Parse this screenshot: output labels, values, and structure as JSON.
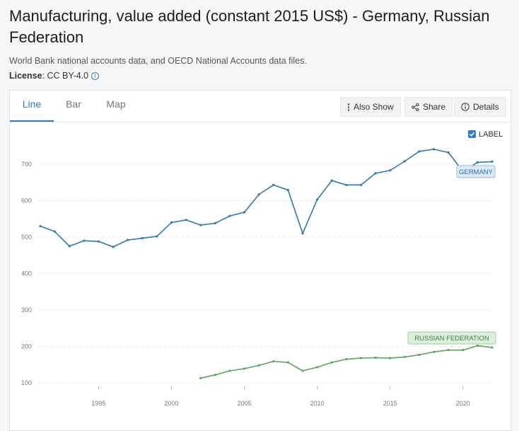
{
  "title": "Manufacturing, value added (constant 2015 US$) - Germany, Russian Federation",
  "source": "World Bank national accounts data, and OECD National Accounts data files.",
  "license": {
    "label": "License",
    "value": ": CC BY-4.0",
    "info_icon": "info-icon"
  },
  "tabs": [
    {
      "label": "Line",
      "active": true
    },
    {
      "label": "Bar",
      "active": false
    },
    {
      "label": "Map",
      "active": false
    }
  ],
  "toolbar": {
    "also_show": "Also Show",
    "share": "Share",
    "details": "Details"
  },
  "label_toggle": {
    "text": "LABEL",
    "checked": true
  },
  "colors": {
    "germany": "#2e78b0",
    "russia": "#5aa55a",
    "accent": "#2c7bc0"
  },
  "chart_data": {
    "type": "line",
    "title": "Manufacturing, value added (constant 2015 US$)",
    "xlabel": "",
    "ylabel": "",
    "xlim": [
      1991,
      2022
    ],
    "ylim": [
      100,
      700
    ],
    "x_ticks": [
      1995,
      2000,
      2005,
      2010,
      2015,
      2020
    ],
    "y_ticks": [
      100,
      200,
      300,
      400,
      500,
      600,
      700
    ],
    "grid": true,
    "series": [
      {
        "name": "GERMANY",
        "x": [
          1991,
          1992,
          1993,
          1994,
          1995,
          1996,
          1997,
          1998,
          1999,
          2000,
          2001,
          2002,
          2003,
          2004,
          2005,
          2006,
          2007,
          2008,
          2009,
          2010,
          2011,
          2012,
          2013,
          2014,
          2015,
          2016,
          2017,
          2018,
          2019,
          2020,
          2021,
          2022
        ],
        "values": [
          530,
          515,
          475,
          490,
          488,
          473,
          492,
          497,
          502,
          540,
          547,
          533,
          538,
          558,
          568,
          617,
          643,
          629,
          510,
          603,
          655,
          643,
          643,
          675,
          683,
          708,
          735,
          741,
          732,
          680,
          705,
          707
        ]
      },
      {
        "name": "RUSSIAN FEDERATION",
        "x": [
          2002,
          2003,
          2004,
          2005,
          2006,
          2007,
          2008,
          2009,
          2010,
          2011,
          2012,
          2013,
          2014,
          2015,
          2016,
          2017,
          2018,
          2019,
          2020,
          2021,
          2022
        ],
        "values": [
          113,
          122,
          133,
          139,
          148,
          159,
          156,
          133,
          143,
          156,
          165,
          168,
          169,
          168,
          171,
          177,
          185,
          190,
          190,
          202,
          197
        ]
      }
    ]
  }
}
